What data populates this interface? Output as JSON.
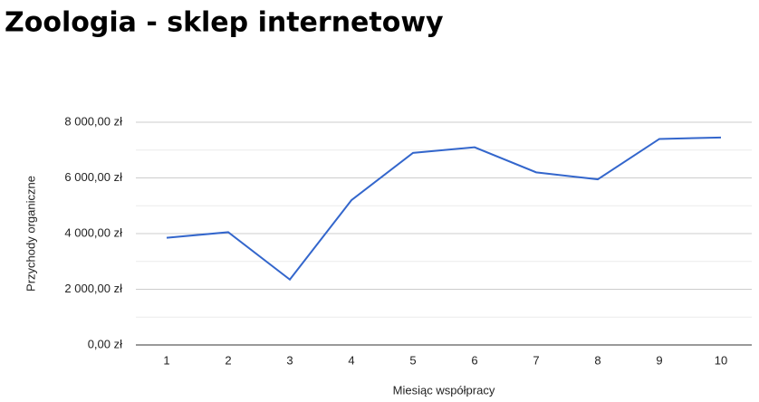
{
  "chart_data": {
    "type": "line",
    "title": "Zoologia - sklep internetowy",
    "x_label": "Miesiąc współpracy",
    "y_label": "Przychody organiczne",
    "categories": [
      "1",
      "2",
      "3",
      "4",
      "5",
      "6",
      "7",
      "8",
      "9",
      "10"
    ],
    "series": [
      {
        "name": "Przychody organiczne",
        "color": "#3366cc",
        "values": [
          3850,
          4050,
          2350,
          5200,
          6900,
          7100,
          6200,
          5950,
          7400,
          7450
        ]
      }
    ],
    "ylim": [
      0,
      8000
    ],
    "yticks": [
      {
        "value": 0,
        "label": "0,00 zł"
      },
      {
        "value": 2000,
        "label": "2 000,00 zł"
      },
      {
        "value": 4000,
        "label": "4 000,00 zł"
      },
      {
        "value": 6000,
        "label": "6 000,00 zł"
      },
      {
        "value": 8000,
        "label": "8 000,00 zł"
      }
    ],
    "minor_yticks": [
      1000,
      3000,
      5000,
      7000
    ],
    "grid": true
  }
}
